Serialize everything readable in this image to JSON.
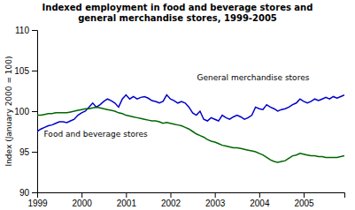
{
  "chart_data": {
    "type": "line",
    "title": "Indexed employment in food and beverage stores and\ngeneral merchandise stores, 1999-2005",
    "y_label": "Index (January 2000 = 100)",
    "x": [
      1999,
      1999.0833333333333,
      1999.1666666666667,
      1999.25,
      1999.3333333333333,
      1999.4166666666667,
      1999.5,
      1999.5833333333333,
      1999.6666666666667,
      1999.75,
      1999.8333333333333,
      1999.9166666666667,
      2000,
      2000.0833333333333,
      2000.1666666666667,
      2000.25,
      2000.3333333333333,
      2000.4166666666667,
      2000.5,
      2000.5833333333333,
      2000.6666666666667,
      2000.75,
      2000.8333333333333,
      2000.9166666666667,
      2001,
      2001.0833333333333,
      2001.1666666666667,
      2001.25,
      2001.3333333333333,
      2001.4166666666667,
      2001.5,
      2001.5833333333333,
      2001.6666666666667,
      2001.75,
      2001.8333333333333,
      2001.9166666666667,
      2002,
      2002.0833333333333,
      2002.1666666666667,
      2002.25,
      2002.3333333333333,
      2002.4166666666667,
      2002.5,
      2002.5833333333333,
      2002.6666666666667,
      2002.75,
      2002.8333333333333,
      2002.9166666666667,
      2003,
      2003.0833333333333,
      2003.1666666666667,
      2003.25,
      2003.3333333333333,
      2003.4166666666667,
      2003.5,
      2003.5833333333333,
      2003.6666666666667,
      2003.75,
      2003.8333333333333,
      2003.9166666666667,
      2004,
      2004.0833333333333,
      2004.1666666666667,
      2004.25,
      2004.3333333333333,
      2004.4166666666667,
      2004.5,
      2004.5833333333333,
      2004.6666666666667,
      2004.75,
      2004.8333333333333,
      2004.9166666666667,
      2005,
      2005.0833333333333,
      2005.1666666666667,
      2005.25,
      2005.3333333333333,
      2005.4166666666667,
      2005.5,
      2005.5833333333333,
      2005.6666666666667,
      2005.75,
      2005.8333333333333,
      2005.9166666666667
    ],
    "xlim": [
      1999,
      2005.9166666666667
    ],
    "xticks": [
      1999,
      2000,
      2001,
      2002,
      2003,
      2004,
      2005
    ],
    "ylim": [
      90.0,
      110.0
    ],
    "yticks": [
      90.0,
      95.0,
      100.0,
      105.0,
      110.0
    ],
    "grid": false,
    "series": [
      {
        "color": "#0000CC",
        "values": [
          97.5,
          97.8,
          98.0,
          98.2,
          98.3,
          98.5,
          98.7,
          98.7,
          98.6,
          98.8,
          99.0,
          99.5,
          99.8,
          100.0,
          100.5,
          101.0,
          100.5,
          100.8,
          101.2,
          101.5,
          101.3,
          101.0,
          100.5,
          101.5,
          102.0,
          101.5,
          101.8,
          101.5,
          101.7,
          101.8,
          101.6,
          101.3,
          101.2,
          101.0,
          101.2,
          102.0,
          101.5,
          101.3,
          101.0,
          101.2,
          101.0,
          100.5,
          99.8,
          99.5,
          100.0,
          99.0,
          98.8,
          99.2,
          99.0,
          98.8,
          99.5,
          99.2,
          99.0,
          99.3,
          99.5,
          99.3,
          99.0,
          99.2,
          99.5,
          100.5,
          100.3,
          100.2,
          100.8,
          100.5,
          100.3,
          100.0,
          100.2,
          100.3,
          100.5,
          100.8,
          101.0,
          101.5,
          101.2,
          101.0,
          101.2,
          101.5,
          101.3,
          101.5,
          101.7,
          101.5,
          101.8,
          101.6,
          101.8,
          102.0
        ]
      },
      {
        "color": "#006600",
        "values": [
          99.5,
          99.5,
          99.6,
          99.7,
          99.7,
          99.8,
          99.8,
          99.8,
          99.8,
          99.9,
          100.0,
          100.1,
          100.2,
          100.3,
          100.3,
          100.4,
          100.5,
          100.4,
          100.3,
          100.2,
          100.1,
          100.0,
          99.8,
          99.7,
          99.5,
          99.4,
          99.3,
          99.2,
          99.1,
          99.0,
          98.9,
          98.8,
          98.8,
          98.7,
          98.5,
          98.6,
          98.5,
          98.4,
          98.3,
          98.2,
          98.0,
          97.8,
          97.5,
          97.2,
          97.0,
          96.8,
          96.5,
          96.3,
          96.2,
          96.0,
          95.8,
          95.7,
          95.6,
          95.5,
          95.5,
          95.4,
          95.3,
          95.2,
          95.1,
          95.0,
          94.8,
          94.6,
          94.3,
          94.0,
          93.8,
          93.7,
          93.8,
          93.9,
          94.2,
          94.5,
          94.6,
          94.8,
          94.7,
          94.6,
          94.5,
          94.5,
          94.4,
          94.4,
          94.3,
          94.3,
          94.3,
          94.3,
          94.4,
          94.5
        ]
      }
    ],
    "annotations": [
      {
        "text": "General merchandise stores",
        "x": 2002.6,
        "y": 103.8
      },
      {
        "text": "Food and beverage stores",
        "x": 1999.15,
        "y": 96.8
      }
    ]
  }
}
